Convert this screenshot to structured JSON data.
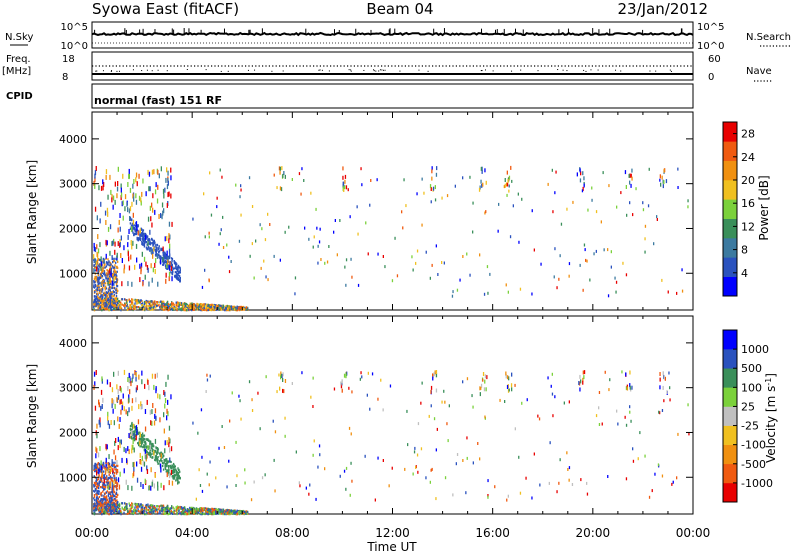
{
  "header": {
    "station": "Syowa East (fitACF)",
    "beam": "Beam 04",
    "date": "23/Jan/2012"
  },
  "top_panels": {
    "nsky_label": "N.Sky",
    "nsearch_label": "N.Search",
    "nsky_ticks": [
      "10^5",
      "10^0"
    ],
    "nsearch_ticks": [
      "10^5",
      "10^0"
    ],
    "freq_label": "Freq.",
    "freq_unit": "[MHz]",
    "freq_ticks": [
      "18",
      "8"
    ],
    "nave_label": "Nave",
    "nave_ticks": [
      "60",
      "0"
    ],
    "cpid_label": "CPID",
    "cpid_value": "normal (fast) 151 RF"
  },
  "colors": {
    "power_scale": [
      "#0000ff",
      "#2a52be",
      "#3c7aa0",
      "#3a8f5a",
      "#7bd13b",
      "#f0c020",
      "#f09010",
      "#f05a10",
      "#e80000"
    ],
    "velocity_scale": [
      "#0000ff",
      "#2a52be",
      "#3a8f5a",
      "#7bd13b",
      "#c0c0c0",
      "#f0c020",
      "#f09010",
      "#f05a10",
      "#e80000"
    ]
  },
  "chart_data": [
    {
      "type": "heatmap",
      "name": "power",
      "ylabel": "Slant Range [km]",
      "xlabel": "",
      "x_ticks": [
        "00:00",
        "04:00",
        "08:00",
        "12:00",
        "16:00",
        "20:00",
        "00:00"
      ],
      "y_ticks": [
        "1000",
        "2000",
        "3000",
        "4000"
      ],
      "xlim": [
        0,
        24
      ],
      "ylim": [
        180,
        4600
      ],
      "colorbar": {
        "label": "Power [dB]",
        "ticks": [
          "4",
          "8",
          "12",
          "16",
          "20",
          "24",
          "28"
        ],
        "range": [
          0,
          30
        ]
      }
    },
    {
      "type": "heatmap",
      "name": "velocity",
      "ylabel": "Slant Range [km]",
      "xlabel": "Time UT",
      "x_ticks": [
        "00:00",
        "04:00",
        "08:00",
        "12:00",
        "16:00",
        "20:00",
        "00:00"
      ],
      "y_ticks": [
        "1000",
        "2000",
        "3000",
        "4000"
      ],
      "xlim": [
        0,
        24
      ],
      "ylim": [
        180,
        4600
      ],
      "colorbar": {
        "label": "Velocity [m s^-1]",
        "ticks": [
          "1000",
          "500",
          "100",
          "25",
          "-25",
          "-100",
          "-500",
          "-1000"
        ]
      }
    }
  ]
}
